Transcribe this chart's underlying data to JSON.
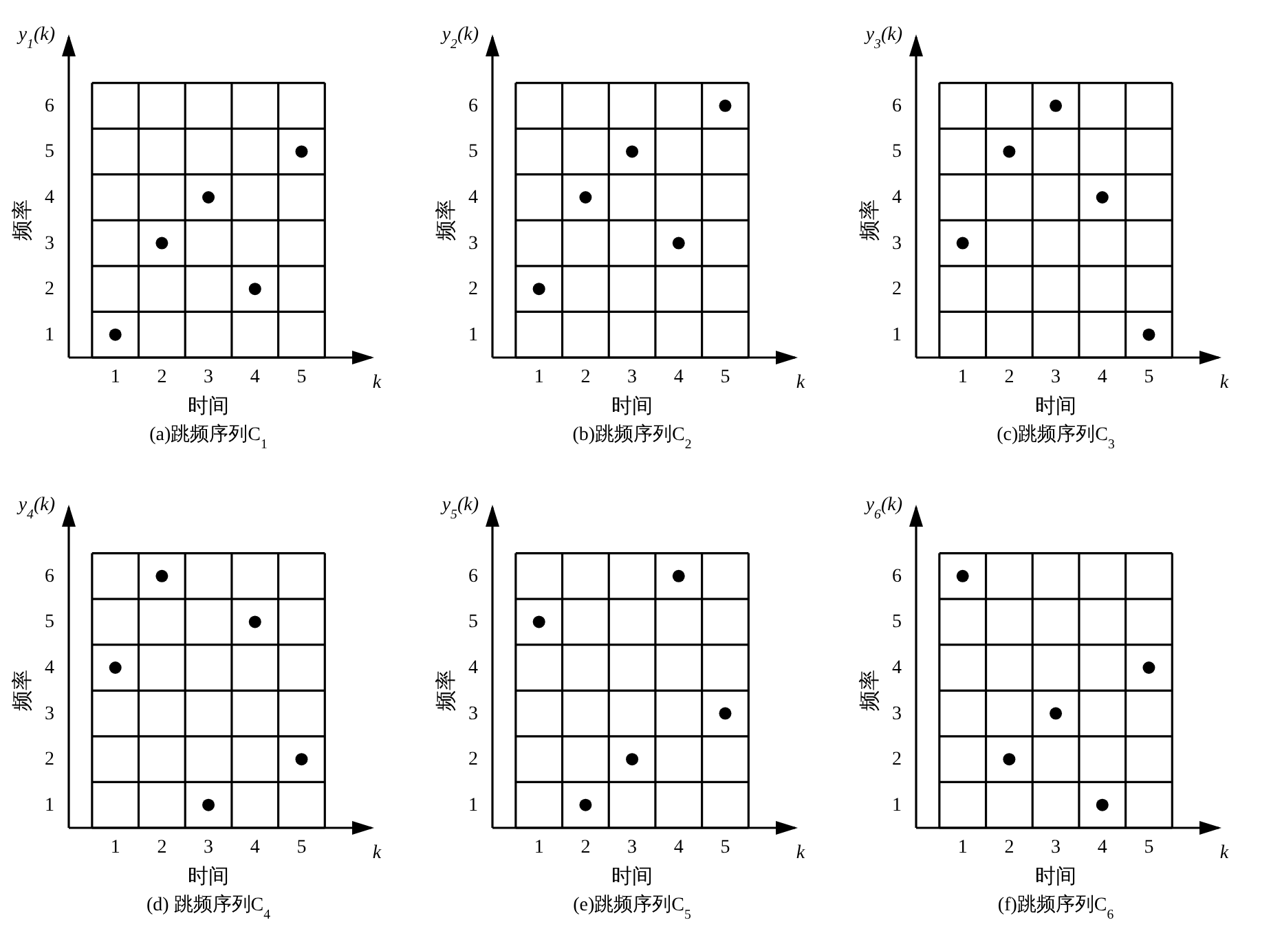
{
  "chart_data": [
    {
      "type": "scatter",
      "title": "(a)跳频序列C$_{1}$",
      "xlabel": "时间",
      "ylabel": "频率",
      "annotations": [
        "y$_{1}$(k)",
        "k"
      ],
      "x": [
        1,
        2,
        3,
        4,
        5
      ],
      "values": [
        1,
        3,
        4,
        2,
        5
      ],
      "color": "#000000",
      "marker": "circle",
      "xlim": [
        0,
        6.5
      ],
      "ylim": [
        0.5,
        7.5
      ],
      "xticks": [
        {
          "value": 0.5,
          "label": null
        },
        1,
        {
          "value": 1.5,
          "label": null
        },
        2,
        {
          "value": 2.5,
          "label": null
        },
        3,
        {
          "value": 3.5,
          "label": null
        },
        4,
        {
          "value": 4.5,
          "label": null
        },
        5,
        {
          "value": 5.5,
          "label": null
        }
      ],
      "yticks": [
        {
          "value": 0.5,
          "label": null
        },
        1,
        {
          "value": 1.5,
          "label": null
        },
        2,
        {
          "value": 2.5,
          "label": null
        },
        3,
        {
          "value": 3.5,
          "label": null
        },
        4,
        {
          "value": 4.5,
          "label": null
        },
        5,
        {
          "value": 5.5,
          "label": null
        },
        6,
        {
          "value": 6.5,
          "label": null
        }
      ],
      "grid": true
    },
    {
      "type": "scatter",
      "title": "(b)跳频序列C$_{2}$",
      "xlabel": "时间",
      "ylabel": "频率",
      "annotations": [
        "y$_{2}$(k)",
        "k"
      ],
      "x": [
        1,
        2,
        3,
        4,
        5
      ],
      "values": [
        2,
        4,
        5,
        3,
        6
      ],
      "color": "#000000",
      "marker": "circle",
      "xlim": [
        0,
        6.5
      ],
      "ylim": [
        0.5,
        7.5
      ],
      "xticks": [
        {
          "value": 0.5,
          "label": null
        },
        1,
        {
          "value": 1.5,
          "label": null
        },
        2,
        {
          "value": 2.5,
          "label": null
        },
        3,
        {
          "value": 3.5,
          "label": null
        },
        4,
        {
          "value": 4.5,
          "label": null
        },
        5,
        {
          "value": 5.5,
          "label": null
        }
      ],
      "yticks": [
        {
          "value": 0.5,
          "label": null
        },
        1,
        {
          "value": 1.5,
          "label": null
        },
        2,
        {
          "value": 2.5,
          "label": null
        },
        3,
        {
          "value": 3.5,
          "label": null
        },
        4,
        {
          "value": 4.5,
          "label": null
        },
        5,
        {
          "value": 5.5,
          "label": null
        },
        6,
        {
          "value": 6.5,
          "label": null
        }
      ],
      "grid": true
    },
    {
      "type": "scatter",
      "title": "(c)跳频序列C$_{3}$",
      "xlabel": "时间",
      "ylabel": "频率",
      "annotations": [
        "y$_{3}$(k)",
        "k"
      ],
      "x": [
        1,
        2,
        3,
        4,
        5
      ],
      "values": [
        3,
        5,
        6,
        4,
        1
      ],
      "color": "#000000",
      "marker": "circle",
      "xlim": [
        0,
        6.5
      ],
      "ylim": [
        0.5,
        7.5
      ],
      "xticks": [
        {
          "value": 0.5,
          "label": null
        },
        1,
        {
          "value": 1.5,
          "label": null
        },
        2,
        {
          "value": 2.5,
          "label": null
        },
        3,
        {
          "value": 3.5,
          "label": null
        },
        4,
        {
          "value": 4.5,
          "label": null
        },
        5,
        {
          "value": 5.5,
          "label": null
        }
      ],
      "yticks": [
        {
          "value": 0.5,
          "label": null
        },
        1,
        {
          "value": 1.5,
          "label": null
        },
        2,
        {
          "value": 2.5,
          "label": null
        },
        3,
        {
          "value": 3.5,
          "label": null
        },
        4,
        {
          "value": 4.5,
          "label": null
        },
        5,
        {
          "value": 5.5,
          "label": null
        },
        6,
        {
          "value": 6.5,
          "label": null
        }
      ],
      "grid": true
    },
    {
      "type": "scatter",
      "title": "(d) 跳频序列C$_{4}$",
      "xlabel": "时间",
      "ylabel": "频率",
      "annotations": [
        "y$_{4}$(k)",
        "k"
      ],
      "x": [
        1,
        2,
        3,
        4,
        5
      ],
      "values": [
        4,
        6,
        1,
        5,
        2
      ],
      "color": "#000000",
      "marker": "circle",
      "xlim": [
        0,
        6.5
      ],
      "ylim": [
        0.5,
        7.5
      ],
      "xticks": [
        {
          "value": 0.5,
          "label": null
        },
        1,
        {
          "value": 1.5,
          "label": null
        },
        2,
        {
          "value": 2.5,
          "label": null
        },
        3,
        {
          "value": 3.5,
          "label": null
        },
        4,
        {
          "value": 4.5,
          "label": null
        },
        5,
        {
          "value": 5.5,
          "label": null
        }
      ],
      "yticks": [
        {
          "value": 0.5,
          "label": null
        },
        1,
        {
          "value": 1.5,
          "label": null
        },
        2,
        {
          "value": 2.5,
          "label": null
        },
        3,
        {
          "value": 3.5,
          "label": null
        },
        4,
        {
          "value": 4.5,
          "label": null
        },
        5,
        {
          "value": 5.5,
          "label": null
        },
        6,
        {
          "value": 6.5,
          "label": null
        }
      ],
      "grid": true
    },
    {
      "type": "scatter",
      "title": "(e)跳频序列C$_{5}$",
      "xlabel": "时间",
      "ylabel": "频率",
      "annotations": [
        "y$_{5}$(k)",
        "k"
      ],
      "x": [
        1,
        2,
        3,
        4,
        5
      ],
      "values": [
        5,
        1,
        2,
        6,
        3
      ],
      "color": "#000000",
      "marker": "circle",
      "xlim": [
        0,
        6.5
      ],
      "ylim": [
        0.5,
        7.5
      ],
      "xticks": [
        {
          "value": 0.5,
          "label": null
        },
        1,
        {
          "value": 1.5,
          "label": null
        },
        2,
        {
          "value": 2.5,
          "label": null
        },
        3,
        {
          "value": 3.5,
          "label": null
        },
        4,
        {
          "value": 4.5,
          "label": null
        },
        5,
        {
          "value": 5.5,
          "label": null
        }
      ],
      "yticks": [
        {
          "value": 0.5,
          "label": null
        },
        1,
        {
          "value": 1.5,
          "label": null
        },
        2,
        {
          "value": 2.5,
          "label": null
        },
        3,
        {
          "value": 3.5,
          "label": null
        },
        4,
        {
          "value": 4.5,
          "label": null
        },
        5,
        {
          "value": 5.5,
          "label": null
        },
        6,
        {
          "value": 6.5,
          "label": null
        }
      ],
      "grid": true
    },
    {
      "type": "scatter",
      "title": "(f)跳频序列C$_{6}$",
      "xlabel": "时间",
      "ylabel": "频率",
      "annotations": [
        "y$_{6}$(k)",
        "k"
      ],
      "x": [
        1,
        2,
        3,
        4,
        5
      ],
      "values": [
        6,
        2,
        3,
        1,
        4
      ],
      "color": "#000000",
      "marker": "circle",
      "xlim": [
        0,
        6.5
      ],
      "ylim": [
        0.5,
        7.5
      ],
      "xticks": [
        {
          "value": 0.5,
          "label": null
        },
        1,
        {
          "value": 1.5,
          "label": null
        },
        2,
        {
          "value": 2.5,
          "label": null
        },
        3,
        {
          "value": 3.5,
          "label": null
        },
        4,
        {
          "value": 4.5,
          "label": null
        },
        5,
        {
          "value": 5.5,
          "label": null
        }
      ],
      "yticks": [
        {
          "value": 0.5,
          "label": null
        },
        1,
        {
          "value": 1.5,
          "label": null
        },
        2,
        {
          "value": 2.5,
          "label": null
        },
        3,
        {
          "value": 3.5,
          "label": null
        },
        4,
        {
          "value": 4.5,
          "label": null
        },
        5,
        {
          "value": 5.5,
          "label": null
        },
        6,
        {
          "value": 6.5,
          "label": null
        }
      ],
      "grid": true
    }
  ]
}
